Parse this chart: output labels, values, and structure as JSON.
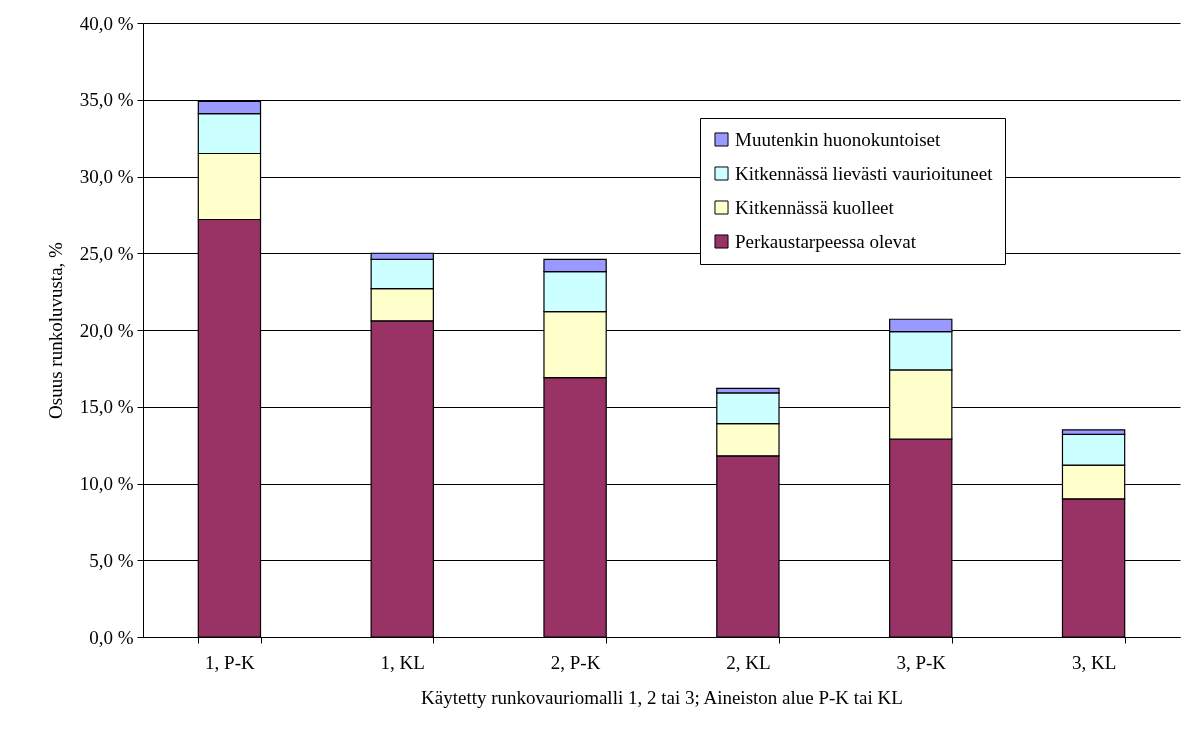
{
  "chart_data": {
    "type": "bar",
    "stacked": true,
    "xlabel": "Käytetty runkovauriomalli 1, 2 tai 3; Aineiston alue P-K tai KL",
    "ylabel": "Osuus runkoluvusta, %",
    "categories": [
      "1, P-K",
      "1, KL",
      "2, P-K",
      "2, KL",
      "3, P-K",
      "3, KL"
    ],
    "series": [
      {
        "name": "Perkaustarpeessa olevat",
        "color": "#993366",
        "values": [
          27.2,
          20.6,
          16.9,
          11.8,
          12.9,
          9.0
        ]
      },
      {
        "name": "Kitkennässä kuolleet",
        "color": "#ffffcc",
        "values": [
          4.3,
          2.1,
          4.3,
          2.1,
          4.5,
          2.2
        ]
      },
      {
        "name": "Kitkennässä lievästi vaurioituneet",
        "color": "#ccffff",
        "values": [
          2.6,
          1.9,
          2.6,
          2.0,
          2.5,
          2.0
        ]
      },
      {
        "name": "Muutenkin huonokuntoiset",
        "color": "#9999ff",
        "values": [
          0.8,
          0.4,
          0.8,
          0.3,
          0.8,
          0.3
        ]
      }
    ],
    "ylim": [
      0,
      40
    ],
    "yticks": [
      {
        "value": 0,
        "label": "0,0 %"
      },
      {
        "value": 5,
        "label": "5,0 %"
      },
      {
        "value": 10,
        "label": "10,0 %"
      },
      {
        "value": 15,
        "label": "15,0 %"
      },
      {
        "value": 20,
        "label": "20,0 %"
      },
      {
        "value": 25,
        "label": "25,0 %"
      },
      {
        "value": 30,
        "label": "30,0 %"
      },
      {
        "value": 35,
        "label": "35,0 %"
      },
      {
        "value": 40,
        "label": "40,0 %"
      }
    ],
    "grid": "y",
    "legend": "top right"
  }
}
